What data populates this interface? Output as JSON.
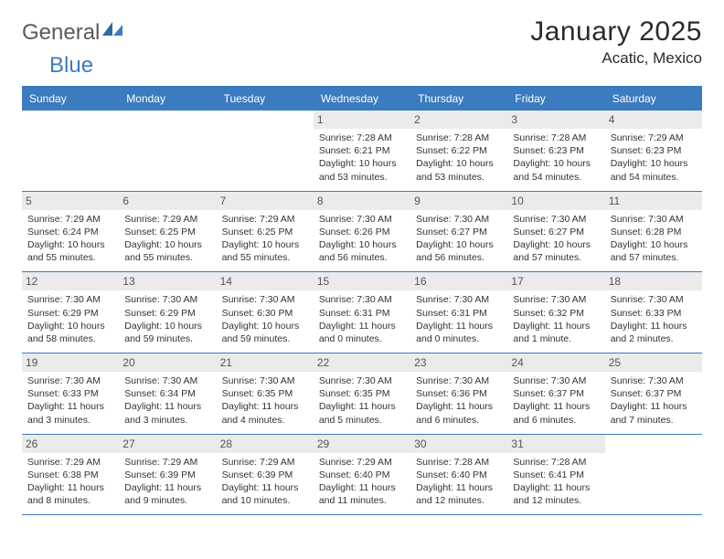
{
  "brand": {
    "part1": "General",
    "part2": "Blue"
  },
  "title": "January 2025",
  "location": "Acatic, Mexico",
  "colors": {
    "accent": "#3b7bbf",
    "header_bg": "#3b7bbf",
    "header_text": "#ffffff",
    "daynum_bg": "#ebebeb",
    "border": "#3b7bbf",
    "text": "#333333"
  },
  "day_labels": [
    "Sunday",
    "Monday",
    "Tuesday",
    "Wednesday",
    "Thursday",
    "Friday",
    "Saturday"
  ],
  "weeks": [
    [
      {
        "n": "",
        "rise": "",
        "set": "",
        "dl1": "",
        "dl2": ""
      },
      {
        "n": "",
        "rise": "",
        "set": "",
        "dl1": "",
        "dl2": ""
      },
      {
        "n": "",
        "rise": "",
        "set": "",
        "dl1": "",
        "dl2": ""
      },
      {
        "n": "1",
        "rise": "Sunrise: 7:28 AM",
        "set": "Sunset: 6:21 PM",
        "dl1": "Daylight: 10 hours",
        "dl2": "and 53 minutes."
      },
      {
        "n": "2",
        "rise": "Sunrise: 7:28 AM",
        "set": "Sunset: 6:22 PM",
        "dl1": "Daylight: 10 hours",
        "dl2": "and 53 minutes."
      },
      {
        "n": "3",
        "rise": "Sunrise: 7:28 AM",
        "set": "Sunset: 6:23 PM",
        "dl1": "Daylight: 10 hours",
        "dl2": "and 54 minutes."
      },
      {
        "n": "4",
        "rise": "Sunrise: 7:29 AM",
        "set": "Sunset: 6:23 PM",
        "dl1": "Daylight: 10 hours",
        "dl2": "and 54 minutes."
      }
    ],
    [
      {
        "n": "5",
        "rise": "Sunrise: 7:29 AM",
        "set": "Sunset: 6:24 PM",
        "dl1": "Daylight: 10 hours",
        "dl2": "and 55 minutes."
      },
      {
        "n": "6",
        "rise": "Sunrise: 7:29 AM",
        "set": "Sunset: 6:25 PM",
        "dl1": "Daylight: 10 hours",
        "dl2": "and 55 minutes."
      },
      {
        "n": "7",
        "rise": "Sunrise: 7:29 AM",
        "set": "Sunset: 6:25 PM",
        "dl1": "Daylight: 10 hours",
        "dl2": "and 55 minutes."
      },
      {
        "n": "8",
        "rise": "Sunrise: 7:30 AM",
        "set": "Sunset: 6:26 PM",
        "dl1": "Daylight: 10 hours",
        "dl2": "and 56 minutes."
      },
      {
        "n": "9",
        "rise": "Sunrise: 7:30 AM",
        "set": "Sunset: 6:27 PM",
        "dl1": "Daylight: 10 hours",
        "dl2": "and 56 minutes."
      },
      {
        "n": "10",
        "rise": "Sunrise: 7:30 AM",
        "set": "Sunset: 6:27 PM",
        "dl1": "Daylight: 10 hours",
        "dl2": "and 57 minutes."
      },
      {
        "n": "11",
        "rise": "Sunrise: 7:30 AM",
        "set": "Sunset: 6:28 PM",
        "dl1": "Daylight: 10 hours",
        "dl2": "and 57 minutes."
      }
    ],
    [
      {
        "n": "12",
        "rise": "Sunrise: 7:30 AM",
        "set": "Sunset: 6:29 PM",
        "dl1": "Daylight: 10 hours",
        "dl2": "and 58 minutes."
      },
      {
        "n": "13",
        "rise": "Sunrise: 7:30 AM",
        "set": "Sunset: 6:29 PM",
        "dl1": "Daylight: 10 hours",
        "dl2": "and 59 minutes."
      },
      {
        "n": "14",
        "rise": "Sunrise: 7:30 AM",
        "set": "Sunset: 6:30 PM",
        "dl1": "Daylight: 10 hours",
        "dl2": "and 59 minutes."
      },
      {
        "n": "15",
        "rise": "Sunrise: 7:30 AM",
        "set": "Sunset: 6:31 PM",
        "dl1": "Daylight: 11 hours",
        "dl2": "and 0 minutes."
      },
      {
        "n": "16",
        "rise": "Sunrise: 7:30 AM",
        "set": "Sunset: 6:31 PM",
        "dl1": "Daylight: 11 hours",
        "dl2": "and 0 minutes."
      },
      {
        "n": "17",
        "rise": "Sunrise: 7:30 AM",
        "set": "Sunset: 6:32 PM",
        "dl1": "Daylight: 11 hours",
        "dl2": "and 1 minute."
      },
      {
        "n": "18",
        "rise": "Sunrise: 7:30 AM",
        "set": "Sunset: 6:33 PM",
        "dl1": "Daylight: 11 hours",
        "dl2": "and 2 minutes."
      }
    ],
    [
      {
        "n": "19",
        "rise": "Sunrise: 7:30 AM",
        "set": "Sunset: 6:33 PM",
        "dl1": "Daylight: 11 hours",
        "dl2": "and 3 minutes."
      },
      {
        "n": "20",
        "rise": "Sunrise: 7:30 AM",
        "set": "Sunset: 6:34 PM",
        "dl1": "Daylight: 11 hours",
        "dl2": "and 3 minutes."
      },
      {
        "n": "21",
        "rise": "Sunrise: 7:30 AM",
        "set": "Sunset: 6:35 PM",
        "dl1": "Daylight: 11 hours",
        "dl2": "and 4 minutes."
      },
      {
        "n": "22",
        "rise": "Sunrise: 7:30 AM",
        "set": "Sunset: 6:35 PM",
        "dl1": "Daylight: 11 hours",
        "dl2": "and 5 minutes."
      },
      {
        "n": "23",
        "rise": "Sunrise: 7:30 AM",
        "set": "Sunset: 6:36 PM",
        "dl1": "Daylight: 11 hours",
        "dl2": "and 6 minutes."
      },
      {
        "n": "24",
        "rise": "Sunrise: 7:30 AM",
        "set": "Sunset: 6:37 PM",
        "dl1": "Daylight: 11 hours",
        "dl2": "and 6 minutes."
      },
      {
        "n": "25",
        "rise": "Sunrise: 7:30 AM",
        "set": "Sunset: 6:37 PM",
        "dl1": "Daylight: 11 hours",
        "dl2": "and 7 minutes."
      }
    ],
    [
      {
        "n": "26",
        "rise": "Sunrise: 7:29 AM",
        "set": "Sunset: 6:38 PM",
        "dl1": "Daylight: 11 hours",
        "dl2": "and 8 minutes."
      },
      {
        "n": "27",
        "rise": "Sunrise: 7:29 AM",
        "set": "Sunset: 6:39 PM",
        "dl1": "Daylight: 11 hours",
        "dl2": "and 9 minutes."
      },
      {
        "n": "28",
        "rise": "Sunrise: 7:29 AM",
        "set": "Sunset: 6:39 PM",
        "dl1": "Daylight: 11 hours",
        "dl2": "and 10 minutes."
      },
      {
        "n": "29",
        "rise": "Sunrise: 7:29 AM",
        "set": "Sunset: 6:40 PM",
        "dl1": "Daylight: 11 hours",
        "dl2": "and 11 minutes."
      },
      {
        "n": "30",
        "rise": "Sunrise: 7:28 AM",
        "set": "Sunset: 6:40 PM",
        "dl1": "Daylight: 11 hours",
        "dl2": "and 12 minutes."
      },
      {
        "n": "31",
        "rise": "Sunrise: 7:28 AM",
        "set": "Sunset: 6:41 PM",
        "dl1": "Daylight: 11 hours",
        "dl2": "and 12 minutes."
      },
      {
        "n": "",
        "rise": "",
        "set": "",
        "dl1": "",
        "dl2": ""
      }
    ]
  ]
}
